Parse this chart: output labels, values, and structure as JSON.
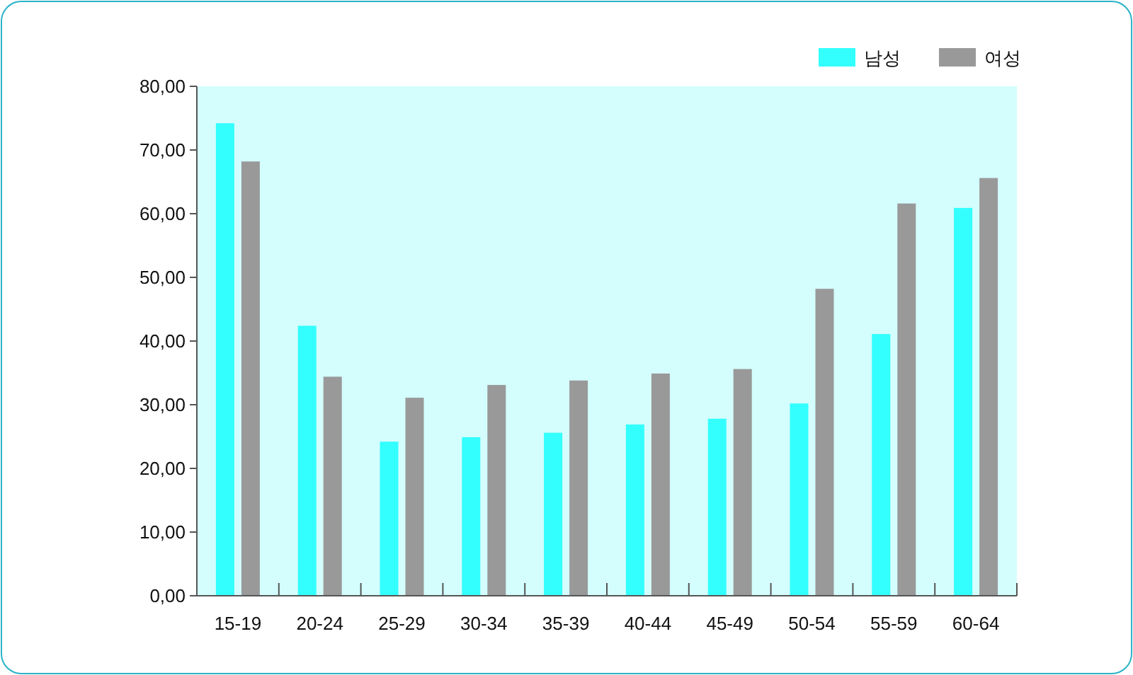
{
  "chart_data": {
    "type": "bar",
    "categories": [
      "15-19",
      "20-24",
      "25-29",
      "30-34",
      "35-39",
      "40-44",
      "45-49",
      "50-54",
      "55-59",
      "60-64"
    ],
    "series": [
      {
        "name": "남성",
        "color": "#33ffff",
        "values": [
          74.2,
          42.4,
          24.2,
          24.9,
          25.6,
          26.9,
          27.8,
          30.2,
          41.1,
          60.9
        ]
      },
      {
        "name": "여성",
        "color": "#999999",
        "values": [
          68.2,
          34.4,
          31.1,
          33.1,
          33.8,
          34.9,
          35.6,
          48.2,
          61.6,
          65.6
        ]
      }
    ],
    "ylim": [
      0,
      80
    ],
    "yticks": [
      {
        "value": 0,
        "label": "0,00"
      },
      {
        "value": 10,
        "label": "10,00"
      },
      {
        "value": 20,
        "label": "20,00"
      },
      {
        "value": 30,
        "label": "30,00"
      },
      {
        "value": 40,
        "label": "40,00"
      },
      {
        "value": 50,
        "label": "50,00"
      },
      {
        "value": 60,
        "label": "60,00"
      },
      {
        "value": 70,
        "label": "70,00"
      },
      {
        "value": 80,
        "label": "80,00"
      }
    ],
    "grid": false,
    "legend": "top right"
  }
}
